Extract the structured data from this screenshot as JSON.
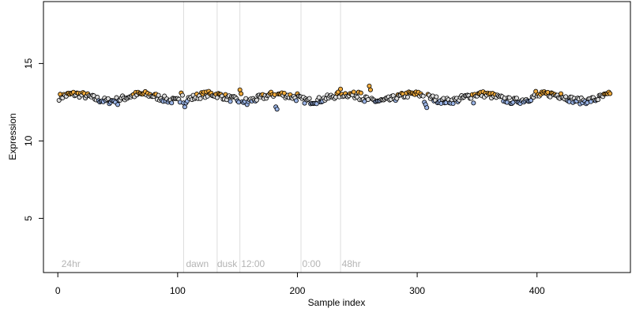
{
  "chart_data": {
    "type": "scatter",
    "title": "",
    "xlabel": "Sample index",
    "ylabel": "Expression",
    "xlim": [
      -12,
      478
    ],
    "ylim": [
      1.5,
      19
    ],
    "xticks": [
      0,
      100,
      200,
      300,
      400
    ],
    "yticks": [
      5,
      10,
      15
    ],
    "grid": false,
    "legend": "none",
    "n_points": 461,
    "baseline": 12.8,
    "colors": {
      "low": "#9ab4e6",
      "mid": "#dcdcdc",
      "high": "#f0aa3c",
      "outline": "#000000",
      "vline": "#dcdcdc",
      "vlabel": "#b4b4b4"
    },
    "anomalies": [
      [
        50,
        12.35
      ],
      [
        103,
        13.1
      ],
      [
        104,
        12.95
      ],
      [
        106,
        12.2
      ],
      [
        107,
        12.45
      ],
      [
        152,
        13.3
      ],
      [
        153,
        13.05
      ],
      [
        158,
        12.35
      ],
      [
        182,
        12.2
      ],
      [
        183,
        12.05
      ],
      [
        200,
        13.05
      ],
      [
        201,
        12.9
      ],
      [
        236,
        13.35
      ],
      [
        251,
        13.15
      ],
      [
        253,
        13.1
      ],
      [
        256,
        12.55
      ],
      [
        260,
        13.55
      ],
      [
        261,
        13.3
      ],
      [
        306,
        12.5
      ],
      [
        307,
        12.35
      ],
      [
        308,
        12.15
      ],
      [
        347,
        12.45
      ],
      [
        399,
        13.2
      ],
      [
        420,
        13.05
      ],
      [
        449,
        12.6
      ]
    ],
    "markers": [
      {
        "x": 105,
        "label": ""
      },
      {
        "x": 133,
        "label": ""
      },
      {
        "x": 152,
        "label": ""
      },
      {
        "x": 203,
        "label": ""
      },
      {
        "x": 236,
        "label": ""
      }
    ],
    "annotations": [
      {
        "x": 3,
        "label": "24hr"
      },
      {
        "x": 107,
        "label": "dawn"
      },
      {
        "x": 133,
        "label": "dusk"
      },
      {
        "x": 153,
        "label": "12:00"
      },
      {
        "x": 204,
        "label": "0:00"
      },
      {
        "x": 237,
        "label": "48hr"
      }
    ]
  }
}
